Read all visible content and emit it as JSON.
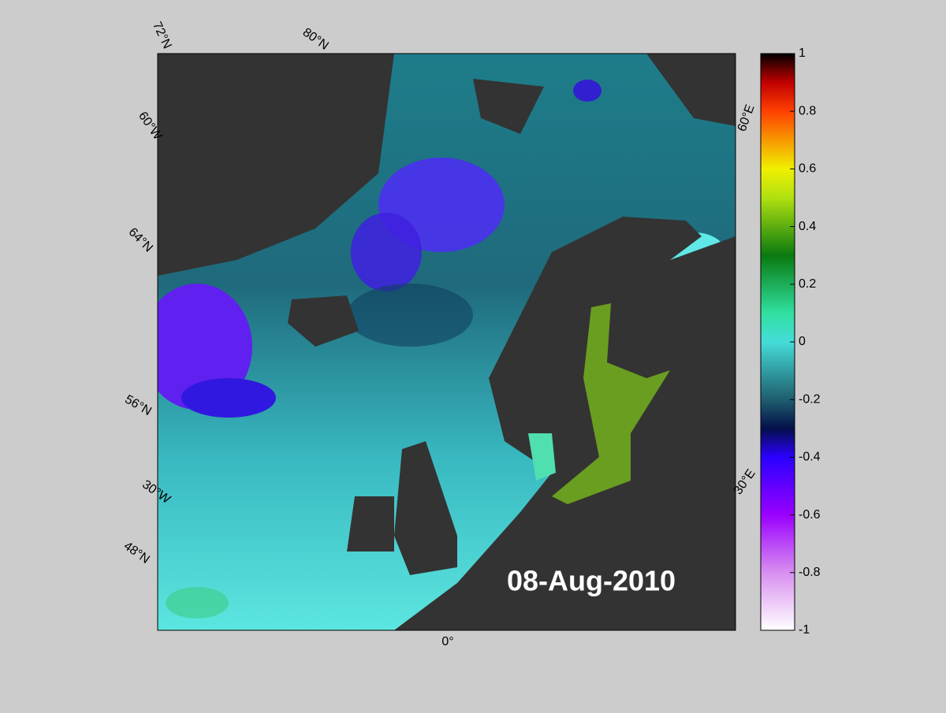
{
  "map": {
    "date_label": "08-Aug-2010",
    "grid_labels": [
      "72°N",
      "80°N",
      "60°W",
      "64°N",
      "56°N",
      "30°W",
      "48°N",
      "0°",
      "30°E",
      "60°E"
    ],
    "colorbar": {
      "lim": [
        -1,
        1
      ],
      "ticks": [
        1,
        0.8,
        0.6,
        0.4,
        0.2,
        0,
        -0.2,
        -0.4,
        -0.6,
        -0.8,
        -1
      ]
    }
  }
}
